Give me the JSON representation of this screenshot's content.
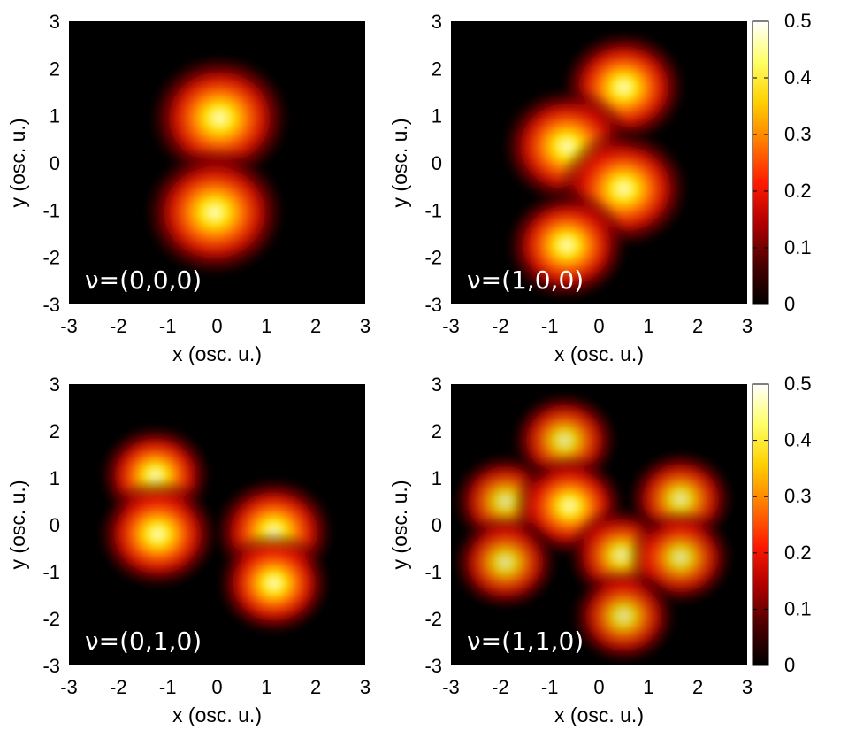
{
  "chart_data": {
    "type": "heatmap",
    "colormap": [
      "#000000",
      "#4a0000",
      "#b00000",
      "#ff1a00",
      "#ff7a00",
      "#ffd000",
      "#ffff66",
      "#ffffff"
    ],
    "colorbar_range": [
      0,
      0.5
    ],
    "colorbar_ticks": [
      "0.5",
      "0.4",
      "0.3",
      "0.2",
      "0.1",
      "0"
    ],
    "panels": [
      {
        "label": "ν=(0,0,0)",
        "xlabel": "x (osc. u.)",
        "ylabel": "y (osc. u.)",
        "xlim": [
          -3,
          3
        ],
        "ylim": [
          -3,
          3
        ],
        "xticks": [
          "-3",
          "-2",
          "-1",
          "0",
          "1",
          "2",
          "3"
        ],
        "yticks": [
          "3",
          "2",
          "1",
          "0",
          "-1",
          "-2",
          "-3"
        ],
        "colorbar": false,
        "peaks": [
          {
            "x": 0.05,
            "y": 0.95,
            "value": 0.48
          },
          {
            "x": -0.05,
            "y": -1.05,
            "value": 0.48
          }
        ]
      },
      {
        "label": "ν=(1,0,0)",
        "xlabel": "x (osc. u.)",
        "ylabel": "y (osc. u.)",
        "xlim": [
          -3,
          3
        ],
        "ylim": [
          -3,
          3
        ],
        "xticks": [
          "-3",
          "-2",
          "-1",
          "0",
          "1",
          "2",
          "3"
        ],
        "yticks": [
          "3",
          "2",
          "1",
          "0",
          "-1",
          "-2",
          "-3"
        ],
        "colorbar": true,
        "peaks": [
          {
            "x": 0.5,
            "y": 1.6,
            "value": 0.36
          },
          {
            "x": -0.65,
            "y": 0.35,
            "value": 0.4
          },
          {
            "x": 0.5,
            "y": -0.55,
            "value": 0.4
          },
          {
            "x": -0.65,
            "y": -1.75,
            "value": 0.34
          }
        ]
      },
      {
        "label": "ν=(0,1,0)",
        "xlabel": "x (osc. u.)",
        "ylabel": "y (osc. u.)",
        "xlim": [
          -3,
          3
        ],
        "ylim": [
          -3,
          3
        ],
        "xticks": [
          "-3",
          "-2",
          "-1",
          "0",
          "1",
          "2",
          "3"
        ],
        "yticks": [
          "3",
          "2",
          "1",
          "0",
          "-1",
          "-2",
          "-3"
        ],
        "colorbar": false,
        "peaks": [
          {
            "x": -1.25,
            "y": 1.05,
            "value": 0.27
          },
          {
            "x": -1.2,
            "y": -0.2,
            "value": 0.33
          },
          {
            "x": 1.15,
            "y": -0.15,
            "value": 0.33
          },
          {
            "x": 1.15,
            "y": -1.25,
            "value": 0.28
          }
        ]
      },
      {
        "label": "ν=(1,1,0)",
        "xlabel": "x  (osc. u.)",
        "ylabel": "y (osc. u.)",
        "xlim": [
          -3,
          3
        ],
        "ylim": [
          -3,
          3
        ],
        "xticks": [
          "-3",
          "-2",
          "-1",
          "0",
          "1",
          "2",
          "3"
        ],
        "yticks": [
          "3",
          "2",
          "1",
          "0",
          "-1",
          "-2",
          "-3"
        ],
        "colorbar": true,
        "peaks": [
          {
            "x": -0.7,
            "y": 1.8,
            "value": 0.23
          },
          {
            "x": -1.9,
            "y": 0.5,
            "value": 0.22
          },
          {
            "x": -0.6,
            "y": 0.4,
            "value": 0.27
          },
          {
            "x": 1.65,
            "y": 0.55,
            "value": 0.23
          },
          {
            "x": -1.9,
            "y": -0.8,
            "value": 0.22
          },
          {
            "x": 0.45,
            "y": -0.65,
            "value": 0.24
          },
          {
            "x": 1.65,
            "y": -0.7,
            "value": 0.22
          },
          {
            "x": 0.5,
            "y": -1.95,
            "value": 0.22
          }
        ]
      }
    ]
  }
}
